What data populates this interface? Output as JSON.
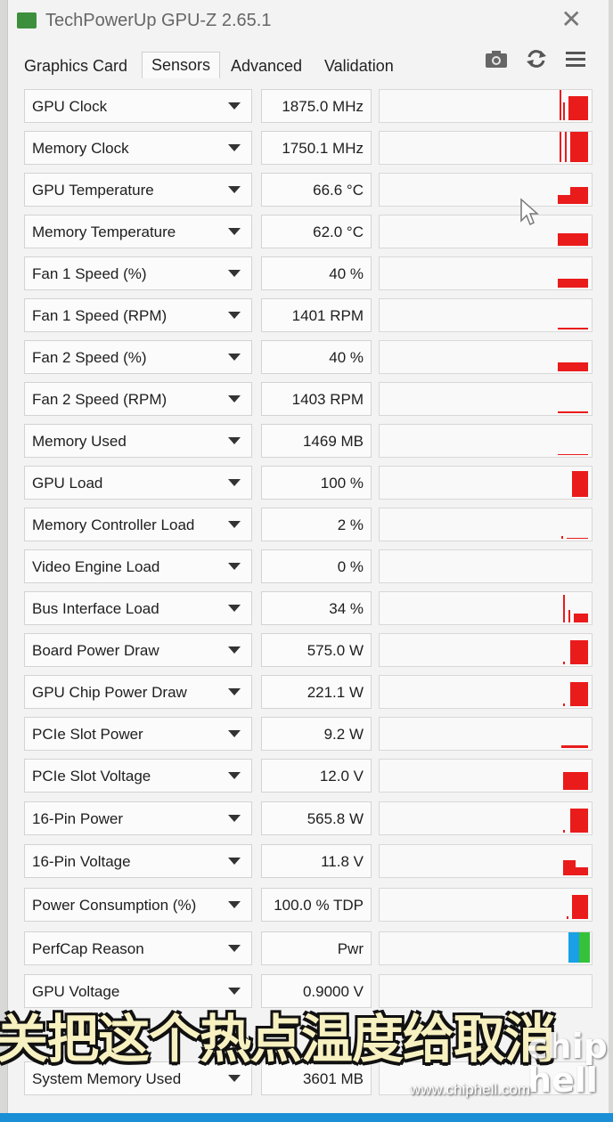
{
  "window": {
    "title": "TechPowerUp GPU-Z 2.65.1",
    "close_glyph": "✕"
  },
  "tabs": [
    {
      "label": "Graphics Card"
    },
    {
      "label": "Sensors"
    },
    {
      "label": "Advanced"
    },
    {
      "label": "Validation"
    }
  ],
  "toolbar": {
    "camera_icon": "camera-icon",
    "refresh_icon": "refresh-icon",
    "menu_icon": "hamburger-menu-icon"
  },
  "sensors": [
    {
      "name": "GPU Clock",
      "value": "1875.0 MHz"
    },
    {
      "name": "Memory Clock",
      "value": "1750.1 MHz"
    },
    {
      "name": "GPU Temperature",
      "value": "66.6 °C"
    },
    {
      "name": "Memory Temperature",
      "value": "62.0 °C"
    },
    {
      "name": "Fan 1 Speed (%)",
      "value": "40 %"
    },
    {
      "name": "Fan 1 Speed (RPM)",
      "value": "1401 RPM"
    },
    {
      "name": "Fan 2 Speed (%)",
      "value": "40 %"
    },
    {
      "name": "Fan 2 Speed (RPM)",
      "value": "1403 RPM"
    },
    {
      "name": "Memory Used",
      "value": "1469 MB"
    },
    {
      "name": "GPU Load",
      "value": "100 %"
    },
    {
      "name": "Memory Controller Load",
      "value": "2 %"
    },
    {
      "name": "Video Engine Load",
      "value": "0 %"
    },
    {
      "name": "Bus Interface Load",
      "value": "34 %"
    },
    {
      "name": "Board Power Draw",
      "value": "575.0 W"
    },
    {
      "name": "GPU Chip Power Draw",
      "value": "221.1 W"
    },
    {
      "name": "PCIe Slot Power",
      "value": "9.2 W"
    },
    {
      "name": "PCIe Slot Voltage",
      "value": "12.0 V"
    },
    {
      "name": "16-Pin Power",
      "value": "565.8 W"
    },
    {
      "name": "16-Pin Voltage",
      "value": "11.8 V"
    },
    {
      "name": "Power Consumption (%)",
      "value": "100.0 % TDP"
    },
    {
      "name": "PerfCap Reason",
      "value": "Pwr"
    },
    {
      "name": "GPU Voltage",
      "value": "0.9000 V"
    },
    {
      "name": "System Memory Used",
      "value": "3601 MB"
    }
  ],
  "colors": {
    "graph_red": "#ea1b1b",
    "perfcap_blue": "#1aa0e6",
    "perfcap_green": "#35c23a"
  },
  "overlay": {
    "caption": "关把这个热点温度给取消",
    "watermark": "www.chiphell.com",
    "logo": "chip hell"
  }
}
